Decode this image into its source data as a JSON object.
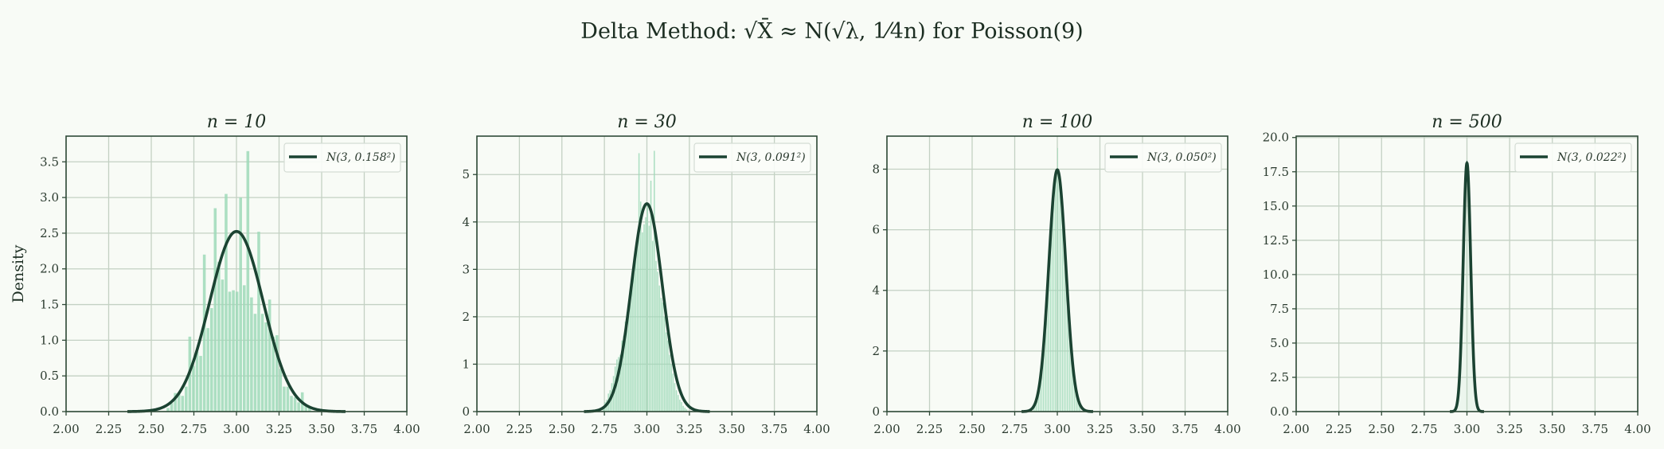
{
  "figure": {
    "suptitle": "Delta Method: √X̄ ≈ N(√λ, 1⁄4n)  for Poisson(9)",
    "ylabel": "Density",
    "colors": {
      "background": "#f8fbf6",
      "bar": "#9fd9b9",
      "curve": "#1b4332",
      "axes": "#2f4a38",
      "grid": "#c3d1c3",
      "legend_border": "#d4dcd4"
    }
  },
  "chart_data": [
    {
      "type": "bar+line",
      "title": "n = 10",
      "xlim": [
        2.0,
        4.0
      ],
      "ylim": [
        0,
        3.86
      ],
      "xticks": [
        "2.00",
        "2.25",
        "2.50",
        "2.75",
        "3.00",
        "3.25",
        "3.50",
        "3.75",
        "4.00"
      ],
      "yticks": [
        "0.0",
        "0.5",
        "1.0",
        "1.5",
        "2.0",
        "2.5",
        "3.0",
        "3.5"
      ],
      "grid": true,
      "legend_position": "top-right",
      "histogram": {
        "bin_start": 2.59,
        "bin_width": 0.0213,
        "heights": [
          0.05,
          0.12,
          0.26,
          0.26,
          0.22,
          0.35,
          1.05,
          0.64,
          0.84,
          0.78,
          2.2,
          1.17,
          1.45,
          2.85,
          2.1,
          1.85,
          3.05,
          1.68,
          1.7,
          1.68,
          3.0,
          1.77,
          3.65,
          1.6,
          1.37,
          2.52,
          1.37,
          1.25,
          1.57,
          1.05,
          1.07,
          0.6,
          0.35,
          0.35,
          0.22,
          0.2,
          0.13,
          0.27,
          0.1,
          0.05
        ]
      },
      "normal": {
        "label": "N(3, 0.158²)",
        "mean": 3,
        "sd": 0.158,
        "x_range": [
          2.36,
          3.64
        ]
      }
    },
    {
      "type": "bar+line",
      "title": "n = 30",
      "xlim": [
        2.0,
        4.0
      ],
      "ylim": [
        0,
        5.81
      ],
      "xticks": [
        "2.00",
        "2.25",
        "2.50",
        "2.75",
        "3.00",
        "3.25",
        "3.50",
        "3.75",
        "4.00"
      ],
      "yticks": [
        "0",
        "1",
        "2",
        "3",
        "4",
        "5"
      ],
      "grid": true,
      "legend_position": "top-right",
      "histogram": {
        "bin_start": 2.74,
        "bin_width": 0.01,
        "heights": [
          0.1,
          0.2,
          0.25,
          0.38,
          0.45,
          0.6,
          0.75,
          0.95,
          1.1,
          1.15,
          1.2,
          1.5,
          1.6,
          1.9,
          2.1,
          2.3,
          2.6,
          2.8,
          3.1,
          3.3,
          3.55,
          5.45,
          4.43,
          3.78,
          3.95,
          4.1,
          4.4,
          3.92,
          4.87,
          3.6,
          5.5,
          3.18,
          2.95,
          2.66,
          2.4,
          2.3,
          2.0,
          1.67,
          1.5,
          1.2,
          1.0,
          0.8,
          0.6,
          0.45,
          0.35,
          0.25,
          0.2,
          0.12,
          0.08,
          0.05
        ]
      },
      "normal": {
        "label": "N(3, 0.091²)",
        "mean": 3,
        "sd": 0.091,
        "x_range": [
          2.63,
          3.37
        ]
      }
    },
    {
      "type": "bar+line",
      "title": "n = 100",
      "xlim": [
        2.0,
        4.0
      ],
      "ylim": [
        0,
        9.09
      ],
      "xticks": [
        "2.00",
        "2.25",
        "2.50",
        "2.75",
        "3.00",
        "3.25",
        "3.50",
        "3.75",
        "4.00"
      ],
      "yticks": [
        "0",
        "2",
        "4",
        "6",
        "8"
      ],
      "grid": true,
      "legend_position": "top-right",
      "histogram": {
        "bin_start": 2.86,
        "bin_width": 0.007,
        "heights": [
          0.11,
          0.18,
          0.28,
          0.42,
          0.6,
          0.88,
          1.2,
          1.5,
          1.97,
          2.43,
          3.0,
          3.67,
          4.3,
          4.96,
          5.62,
          6.25,
          6.82,
          7.3,
          7.67,
          7.9,
          8.7,
          7.9,
          7.67,
          7.3,
          6.82,
          6.25,
          5.62,
          4.96,
          4.3,
          3.67,
          3.0,
          2.43,
          1.97,
          1.5,
          1.2,
          0.88,
          0.6,
          0.42,
          0.28,
          0.18
        ]
      },
      "normal": {
        "label": "N(3, 0.050²)",
        "mean": 3,
        "sd": 0.05,
        "x_range": [
          2.79,
          3.21
        ]
      }
    },
    {
      "type": "bar+line",
      "title": "n = 500",
      "xlim": [
        2.0,
        4.0
      ],
      "ylim": [
        0,
        20.1
      ],
      "xticks": [
        "2.00",
        "2.25",
        "2.50",
        "2.75",
        "3.00",
        "3.25",
        "3.50",
        "3.75",
        "4.00"
      ],
      "yticks": [
        "0.0",
        "2.5",
        "5.0",
        "7.5",
        "10.0",
        "12.5",
        "15.0",
        "17.5",
        "20.0"
      ],
      "grid": true,
      "legend_position": "top-right",
      "histogram": {
        "bin_start": 2.9325,
        "bin_width": 0.005,
        "heights": [
          0.2,
          0.4,
          0.8,
          1.3,
          2.2,
          3.5,
          5.1,
          7.2,
          9.6,
          12.0,
          14.3,
          16.3,
          17.6,
          18.5,
          17.6,
          16.3,
          14.3,
          12.0,
          9.6,
          7.2,
          5.1,
          3.5,
          2.2,
          1.3,
          0.8,
          0.4,
          0.2
        ]
      },
      "normal": {
        "label": "N(3, 0.022²)",
        "mean": 3,
        "sd": 0.022,
        "x_range": [
          2.9,
          3.1
        ]
      }
    }
  ]
}
